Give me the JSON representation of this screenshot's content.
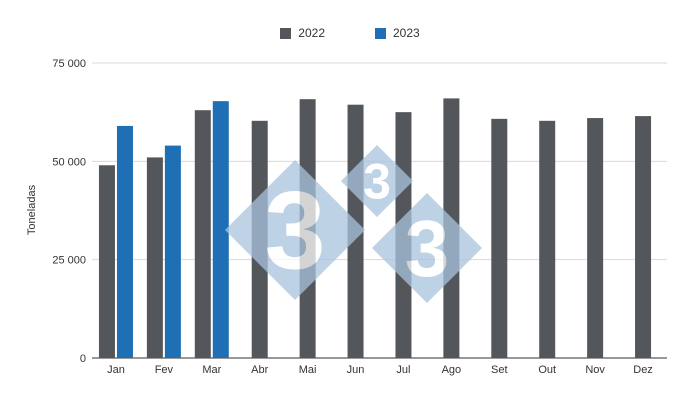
{
  "chart_data": {
    "type": "bar",
    "categories": [
      "Jan",
      "Fev",
      "Mar",
      "Abr",
      "Mai",
      "Jun",
      "Jul",
      "Ago",
      "Set",
      "Out",
      "Nov",
      "Dez"
    ],
    "series": [
      {
        "name": "2022",
        "color": "#53565a",
        "values": [
          49000,
          51000,
          63000,
          60300,
          65800,
          64400,
          62500,
          66000,
          60800,
          60300,
          61000,
          61500
        ]
      },
      {
        "name": "2023",
        "color": "#1f6fb5",
        "values": [
          59000,
          54000,
          65300,
          null,
          null,
          null,
          null,
          null,
          null,
          null,
          null,
          null
        ]
      }
    ],
    "ylabel": "Toneladas",
    "ylim": [
      0,
      75000
    ],
    "yticks": [
      0,
      25000,
      50000,
      75000
    ],
    "ytick_labels": [
      "0",
      "25 000",
      "50 000",
      "75 000"
    ],
    "grid": true,
    "legend_position": "top-center",
    "watermark_color": "#a9c3de",
    "watermark_text": "3"
  }
}
